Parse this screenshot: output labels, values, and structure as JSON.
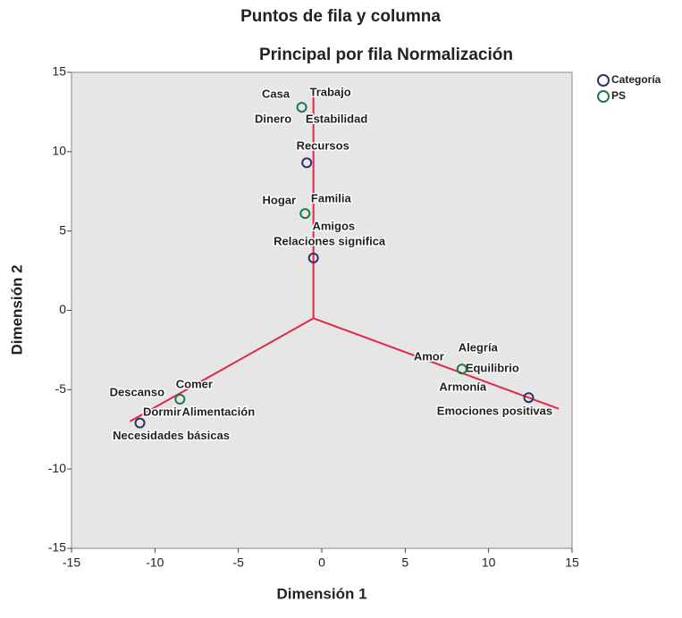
{
  "chart_data": {
    "type": "scatter",
    "title": "Puntos de fila y columna",
    "subtitle": "Principal por fila Normalización",
    "x_label": "Dimensión 1",
    "y_label": "Dimensión 2",
    "xlim": [
      -15,
      15
    ],
    "ylim": [
      -15,
      15
    ],
    "xticks": [
      -15,
      -10,
      -5,
      0,
      5,
      10,
      15
    ],
    "yticks": [
      -15,
      -10,
      -5,
      0,
      5,
      10,
      15
    ],
    "background": "#e6e6e6",
    "lines": [
      {
        "color": "#e0284a",
        "x": [
          -0.5,
          -0.5
        ],
        "y": [
          -0.5,
          13.5
        ]
      },
      {
        "color": "#e0284a",
        "x": [
          -0.5,
          -11.5
        ],
        "y": [
          -0.5,
          -7
        ]
      },
      {
        "color": "#e0284a",
        "x": [
          -0.5,
          14.2
        ],
        "y": [
          -0.5,
          -6.2
        ]
      }
    ],
    "series": [
      {
        "name": "Categoría",
        "color": "#2a3560",
        "x": [
          -0.9,
          -0.5,
          -10.9,
          12.4
        ],
        "values": [
          9.3,
          3.3,
          -7.1,
          -5.5
        ],
        "labels": [
          [
            "Recursos"
          ],
          [
            "Relaciones significa"
          ],
          [
            "Necesidades básicas"
          ],
          [
            "Emociones positivas"
          ]
        ]
      },
      {
        "name": "PS",
        "color": "#1a7a4a",
        "x": [
          -1.2,
          -1.0,
          -8.5,
          8.4
        ],
        "values": [
          12.8,
          6.1,
          -5.6,
          -3.7
        ],
        "labels": [
          [
            "Casa",
            "Trabajo",
            "Dinero",
            "Estabilidad"
          ],
          [
            "Hogar",
            "Familia",
            "Amigos"
          ],
          [
            "Comer",
            "Descanso",
            "Dormir",
            "Alimentación"
          ],
          [
            "Amor",
            "Alegría",
            "Equilibrio",
            "Armonía"
          ]
        ]
      }
    ]
  }
}
